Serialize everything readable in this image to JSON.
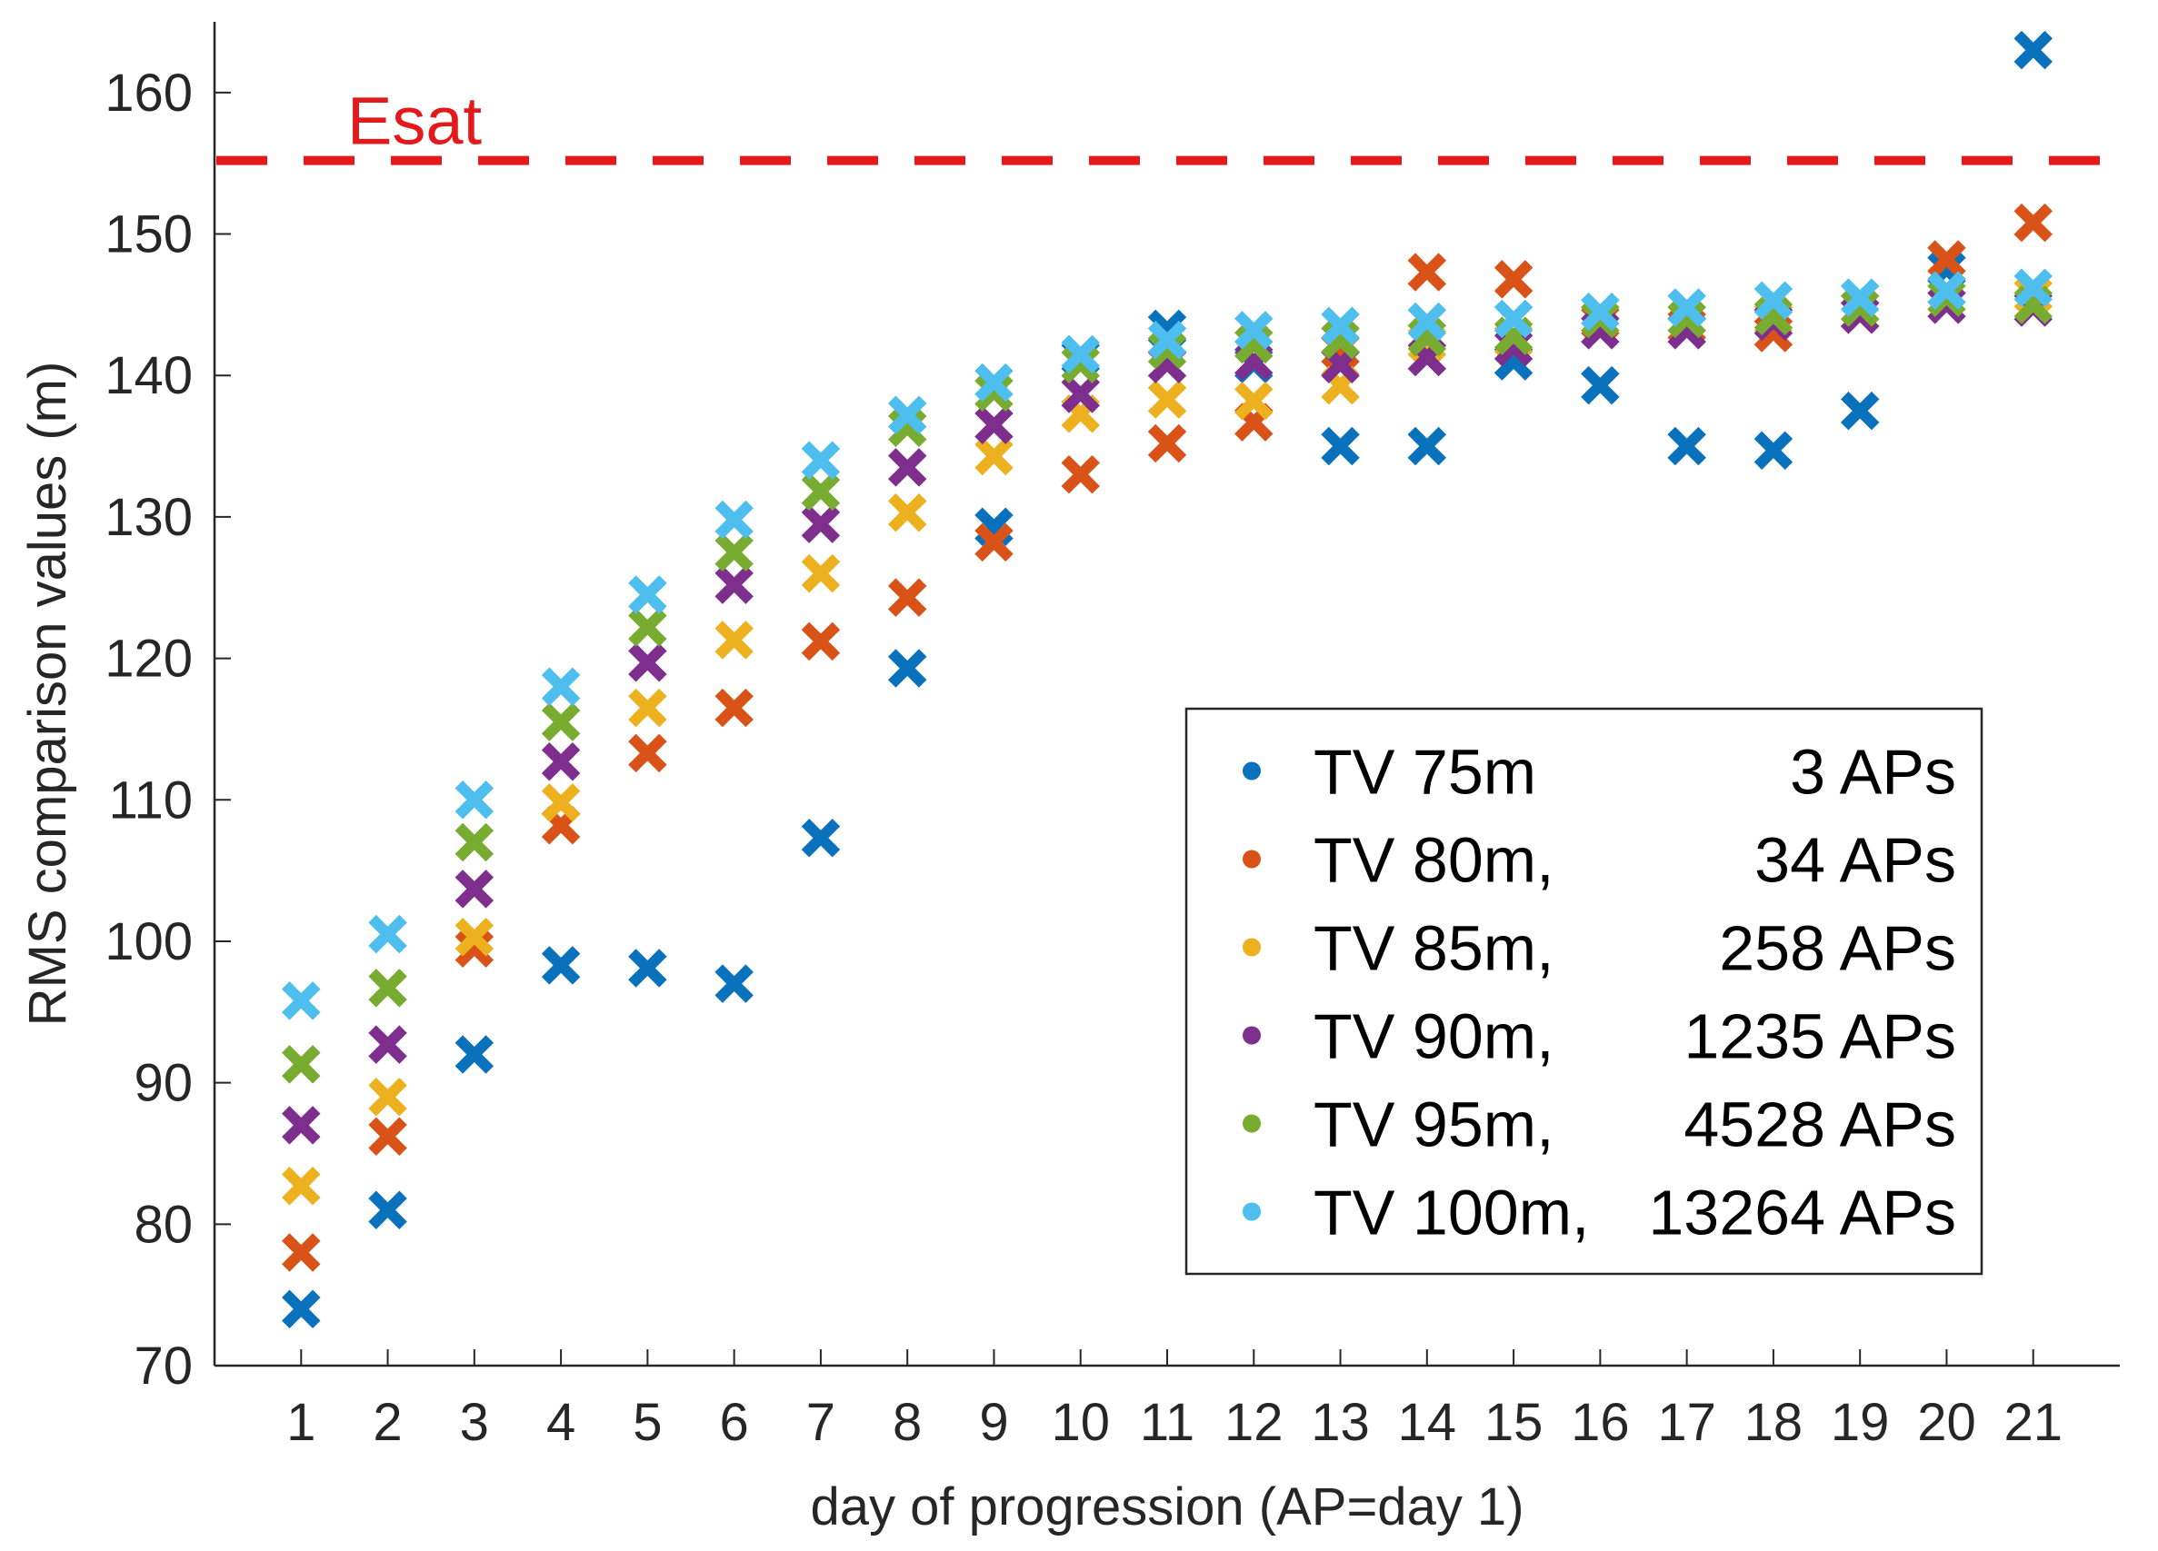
{
  "chart_data": {
    "type": "scatter",
    "title": "",
    "xlabel": "day of progression (AP=day 1)",
    "ylabel": "RMS comparison values (m)",
    "xlim": [
      0,
      22
    ],
    "ylim": [
      70,
      165
    ],
    "x_ticks": [
      1,
      2,
      3,
      4,
      5,
      6,
      7,
      8,
      9,
      10,
      11,
      12,
      13,
      14,
      15,
      16,
      17,
      18,
      19,
      20,
      21
    ],
    "y_ticks": [
      70,
      80,
      90,
      100,
      110,
      120,
      130,
      140,
      150,
      160
    ],
    "grid": false,
    "legend_position": "bottom-right",
    "reference_line": {
      "label": "Esat",
      "value": 155.2,
      "color": "#e3191c",
      "style": "dashed"
    },
    "series": [
      {
        "name": "TV 75m",
        "legend_detail": "3 APs",
        "color": "#0a72bd",
        "x": [
          1,
          2,
          3,
          4,
          5,
          6,
          7,
          8,
          9,
          10,
          11,
          12,
          13,
          14,
          15,
          16,
          17,
          18,
          19,
          20,
          21
        ],
        "values": [
          74,
          81,
          92,
          98.3,
          98.1,
          97,
          107.3,
          119.3,
          129.3,
          141.3,
          143.3,
          140.8,
          135,
          135,
          141,
          139.3,
          135,
          134.7,
          137.5,
          147.5,
          163
        ]
      },
      {
        "name": "TV 80m,",
        "legend_detail": "34 APs",
        "color": "#d95319",
        "x": [
          1,
          2,
          3,
          4,
          5,
          6,
          7,
          8,
          9,
          10,
          11,
          12,
          13,
          14,
          15,
          16,
          17,
          18,
          19,
          20,
          21
        ],
        "values": [
          78,
          86.2,
          99.5,
          108.2,
          113.3,
          116.5,
          121.2,
          124.3,
          128.2,
          133,
          135.2,
          136.7,
          141.8,
          147.3,
          146.8,
          143.8,
          143.5,
          143,
          144.3,
          148.2,
          150.8
        ]
      },
      {
        "name": "TV 85m,",
        "legend_detail": "258 APs",
        "color": "#edb120",
        "x": [
          1,
          2,
          3,
          4,
          5,
          6,
          7,
          8,
          9,
          10,
          11,
          12,
          13,
          14,
          15,
          16,
          17,
          18,
          19,
          20,
          21
        ],
        "values": [
          82.7,
          89,
          100.3,
          109.8,
          116.5,
          121.3,
          126,
          130.3,
          134.3,
          137.3,
          138.3,
          138.2,
          139.3,
          142.3,
          142.5,
          144,
          144,
          144,
          144.8,
          146,
          145.7
        ]
      },
      {
        "name": "TV 90m,",
        "legend_detail": "1235 APs",
        "color": "#7e2f8e",
        "x": [
          1,
          2,
          3,
          4,
          5,
          6,
          7,
          8,
          9,
          10,
          11,
          12,
          13,
          14,
          15,
          16,
          17,
          18,
          19,
          20,
          21
        ],
        "values": [
          87,
          92.7,
          103.7,
          112.7,
          119.7,
          125.2,
          129.5,
          133.5,
          136.5,
          138.7,
          140.8,
          141,
          140.8,
          141.3,
          142,
          143.2,
          143.2,
          143.8,
          144.3,
          145,
          144.8
        ]
      },
      {
        "name": "TV 95m,",
        "legend_detail": "4528 APs",
        "color": "#77ac30",
        "x": [
          1,
          2,
          3,
          4,
          5,
          6,
          7,
          8,
          9,
          10,
          11,
          12,
          13,
          14,
          15,
          16,
          17,
          18,
          19,
          20,
          21
        ],
        "values": [
          91.3,
          96.7,
          107,
          115.5,
          122.2,
          127.5,
          131.8,
          136.3,
          138.8,
          140.8,
          141.8,
          142.2,
          142.5,
          142.7,
          142.8,
          144,
          144,
          144.2,
          144.8,
          145.5,
          145
        ]
      },
      {
        "name": "TV 100m,",
        "legend_detail": "13264 APs",
        "color": "#4dbeee",
        "x": [
          1,
          2,
          3,
          4,
          5,
          6,
          7,
          8,
          9,
          10,
          11,
          12,
          13,
          14,
          15,
          16,
          17,
          18,
          19,
          20,
          21
        ],
        "values": [
          95.8,
          100.5,
          110,
          118,
          124.5,
          129.8,
          134,
          137.2,
          139.5,
          141.5,
          142.5,
          143.2,
          143.5,
          143.8,
          144,
          144.5,
          144.8,
          145.3,
          145.5,
          146,
          146.2
        ]
      }
    ]
  }
}
